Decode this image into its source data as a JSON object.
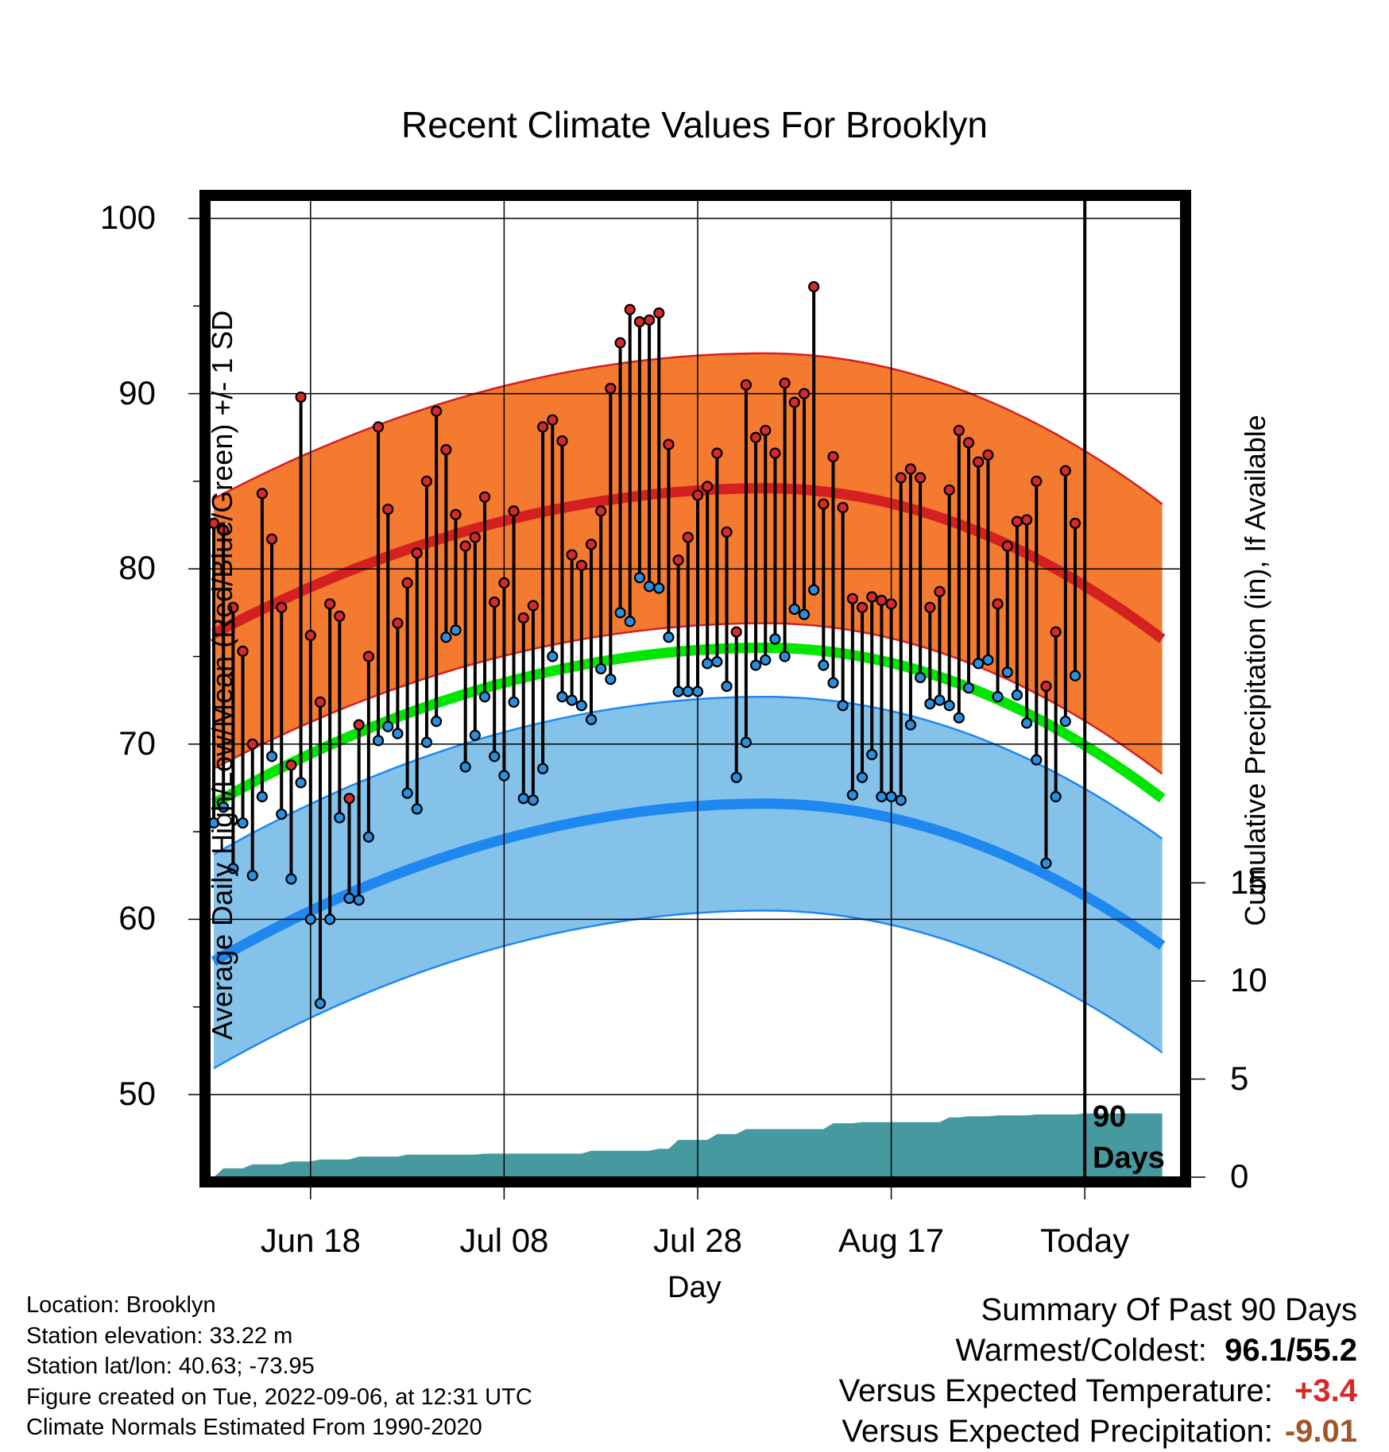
{
  "title": "Recent Climate Values For Brooklyn",
  "colors": {
    "high_band": "#f47a30",
    "high_mean": "#d42020",
    "low_band": "#85c2ea",
    "low_mean": "#1e88f0",
    "mean": "#00e600",
    "precip": "#46999f",
    "high_dot": "#d42a2a",
    "low_dot": "#2a8fe0",
    "warm_text": "#d42a2a",
    "precip_text": "#a25527"
  },
  "chart_data": {
    "type": "line",
    "title": "Recent Climate Values For Brooklyn",
    "xlabel": "Day",
    "ylabel": "Average Daily High/Low/Mean (Red/Blue/Green) +/- 1 SD",
    "y2label": "Cumulative Precipitation (in), If Available",
    "ylim": [
      45.3,
      101.7
    ],
    "y2lim": [
      0,
      20
    ],
    "xlim": [
      -0.5,
      99
    ],
    "yticks": [
      50,
      60,
      70,
      80,
      90,
      100
    ],
    "y2ticks": [
      0,
      5,
      10,
      15
    ],
    "xticks": [
      {
        "day": 10,
        "label": "Jun 18"
      },
      {
        "day": 30,
        "label": "Jul 08"
      },
      {
        "day": 50,
        "label": "Jul 28"
      },
      {
        "day": 70,
        "label": "Aug 17"
      },
      {
        "day": 90,
        "label": "Today"
      }
    ],
    "today_day": 90,
    "today_label": [
      "90",
      "Days"
    ],
    "grid": true,
    "series": [
      {
        "name": "Daily High",
        "values": [
          82.6,
          82.2,
          77.8,
          75.3,
          70.0,
          84.3,
          81.7,
          77.8,
          68.8,
          89.8,
          76.2,
          72.4,
          78.0,
          77.3,
          66.9,
          71.1,
          75.0,
          88.1,
          83.4,
          76.9,
          79.2,
          80.9,
          85.0,
          89.0,
          86.8,
          83.1,
          81.3,
          81.8,
          84.1,
          78.1,
          79.2,
          83.3,
          77.2,
          77.9,
          88.1,
          88.5,
          87.3,
          80.8,
          80.2,
          81.4,
          83.3,
          90.3,
          92.9,
          94.8,
          94.1,
          94.2,
          94.6,
          87.1,
          80.5,
          81.8,
          84.2,
          84.7,
          86.6,
          82.1,
          76.4,
          90.5,
          87.5,
          87.9,
          86.6,
          90.6,
          89.5,
          90.0,
          96.1,
          83.7,
          86.4,
          83.5,
          78.3,
          77.8,
          78.4,
          78.2,
          78.0,
          85.2,
          85.7,
          85.2,
          77.8,
          78.7,
          84.5,
          87.9,
          87.2,
          86.1,
          86.5,
          78.0,
          81.3,
          82.7,
          82.8,
          85.0,
          73.3,
          76.4,
          85.6,
          82.6
        ]
      },
      {
        "name": "Daily Low",
        "values": [
          65.5,
          66.4,
          62.9,
          65.5,
          62.5,
          67.0,
          69.3,
          66.0,
          62.3,
          67.8,
          60.0,
          55.2,
          60.0,
          65.8,
          61.2,
          61.1,
          64.7,
          70.2,
          71.0,
          70.6,
          67.2,
          66.3,
          70.1,
          71.3,
          76.1,
          76.5,
          68.7,
          70.5,
          72.7,
          69.3,
          68.2,
          72.4,
          66.9,
          66.8,
          68.6,
          75.0,
          72.7,
          72.5,
          72.2,
          71.4,
          74.3,
          73.7,
          77.5,
          77.0,
          79.5,
          79.0,
          78.9,
          76.1,
          73.0,
          73.0,
          73.0,
          74.6,
          74.7,
          73.3,
          68.1,
          70.1,
          74.5,
          74.8,
          76.0,
          75.0,
          77.7,
          77.4,
          78.8,
          74.5,
          73.5,
          72.2,
          67.1,
          68.1,
          69.4,
          67.0,
          67.0,
          66.8,
          71.1,
          73.8,
          72.3,
          72.5,
          72.2,
          71.5,
          73.2,
          74.6,
          74.8,
          72.7,
          74.1,
          72.8,
          71.2,
          69.1,
          63.2,
          67.0,
          71.3,
          73.9
        ]
      },
      {
        "name": "Normal High",
        "start": 76.3,
        "peak": 84.6,
        "end": 76.0,
        "sd": 7.7
      },
      {
        "name": "Normal Low",
        "start": 57.6,
        "peak": 66.6,
        "end": 58.5,
        "sd": 6.1
      },
      {
        "name": "Normal Mean",
        "start": 66.6,
        "peak": 75.5,
        "end": 66.9
      },
      {
        "name": "Cumulative Precipitation",
        "x": [
          0,
          1,
          3,
          4,
          7,
          8,
          10,
          11,
          14,
          15,
          19,
          20,
          27,
          28,
          38,
          39,
          45,
          46,
          47,
          48,
          51,
          52,
          54,
          55,
          63,
          64,
          66,
          67,
          75,
          76,
          77,
          78,
          80,
          81,
          84,
          85,
          89,
          90,
          98
        ],
        "values": [
          0,
          0.45,
          0.45,
          0.65,
          0.65,
          0.8,
          0.8,
          0.9,
          0.9,
          1.05,
          1.05,
          1.15,
          1.15,
          1.2,
          1.2,
          1.35,
          1.35,
          1.45,
          1.45,
          1.9,
          1.9,
          2.2,
          2.2,
          2.45,
          2.45,
          2.75,
          2.75,
          2.8,
          2.8,
          3.05,
          3.05,
          3.1,
          3.1,
          3.15,
          3.15,
          3.2,
          3.2,
          3.25,
          3.25
        ]
      }
    ]
  },
  "x_axis": {
    "label": "Day"
  },
  "y_axis": {
    "label": "Average Daily High/Low/Mean (Red/Blue/Green) +/- 1 SD"
  },
  "y2_axis": {
    "label": "Cumulative Precipitation (in), If Available"
  },
  "today_marker": {
    "line1": "90",
    "line2": "Days"
  },
  "meta": {
    "location": "Location: Brooklyn",
    "elevation": "Station elevation: 33.22 m",
    "latlon": "Station lat/lon: 40.63; -73.95",
    "created": "Figure created on Tue, 2022-09-06, at 12:31 UTC",
    "normals": "Climate Normals Estimated From 1990-2020"
  },
  "summary": {
    "heading": "Summary Of Past 90 Days",
    "warm_cold_label": "Warmest/Coldest:",
    "warmest": "96.1",
    "sep": "/",
    "coldest": "55.2",
    "temp_label": "Versus Expected Temperature:",
    "temp_value": "+3.4",
    "precip_label": "Versus Expected Precipitation:",
    "precip_value": "-9.01"
  }
}
